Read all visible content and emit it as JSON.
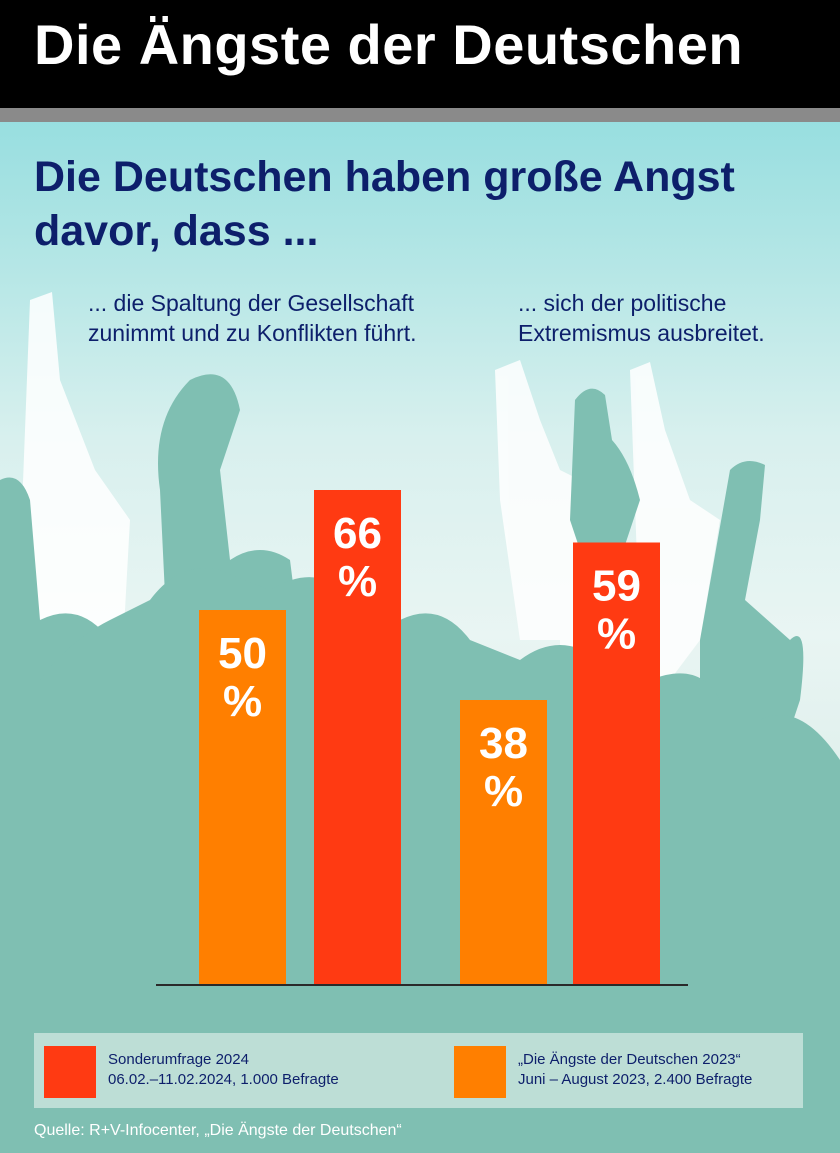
{
  "header": {
    "title": "Die Ängste der Deutschen"
  },
  "headline": "Die Deutschen haben große Angst davor, dass ...",
  "subtitles": {
    "left": "... die Spaltung der Gesellschaft zunimmt und zu Konflikten führt.",
    "right": "... sich der politische Extremismus ausbreitet."
  },
  "legend": {
    "item2024_line1": "Sonderumfrage 2024",
    "item2024_line2": "06.02.–11.02.2024, 1.000 Befragte",
    "item2023_line1": "„Die Ängste der Deutschen 2023“",
    "item2023_line2": "Juni – August 2023, 2.400 Befragte"
  },
  "source": "Quelle: R+V-Infocenter, „Die Ängste der Deutschen“",
  "colors": {
    "orange": "#ff7f00",
    "red": "#ff3a12",
    "headline": "#0d1f6b",
    "silhouette": "#7fbfb2"
  },
  "chart_data": {
    "type": "bar",
    "categories": [
      "... die Spaltung der Gesellschaft zunimmt und zu Konflikten führt.",
      "... sich der politische Extremismus ausbreitet."
    ],
    "series": [
      {
        "name": "„Die Ängste der Deutschen 2023“",
        "values": [
          50,
          38
        ]
      },
      {
        "name": "Sonderumfrage 2024",
        "values": [
          66,
          59
        ]
      }
    ],
    "unit": "%",
    "ylim": [
      0,
      100
    ],
    "legend": "bottom",
    "grid": false
  }
}
